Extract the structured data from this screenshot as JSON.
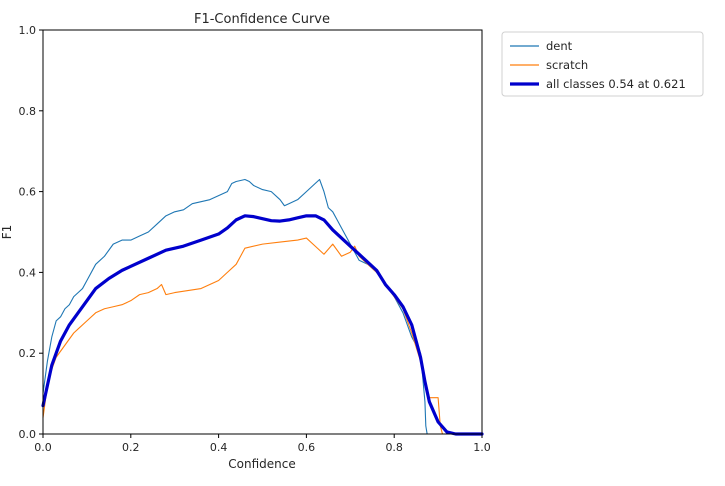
{
  "chart_data": {
    "type": "line",
    "title": "F1-Confidence Curve",
    "xlabel": "Confidence",
    "ylabel": "F1",
    "xlim": [
      0,
      1
    ],
    "ylim": [
      0,
      1
    ],
    "xticks": [
      0.0,
      0.2,
      0.4,
      0.6,
      0.8,
      1.0
    ],
    "yticks": [
      0.0,
      0.2,
      0.4,
      0.6,
      0.8,
      1.0
    ],
    "xtick_labels": [
      "0.0",
      "0.2",
      "0.4",
      "0.6",
      "0.8",
      "1.0"
    ],
    "ytick_labels": [
      "0.0",
      "0.2",
      "0.4",
      "0.6",
      "0.8",
      "1.0"
    ],
    "grid": false,
    "legend_position": "outside-top-right",
    "series": [
      {
        "name": "dent",
        "color": "#1f77b4",
        "width": "thin",
        "x": [
          0.0,
          0.01,
          0.02,
          0.03,
          0.04,
          0.05,
          0.06,
          0.07,
          0.08,
          0.09,
          0.1,
          0.12,
          0.14,
          0.16,
          0.18,
          0.2,
          0.22,
          0.24,
          0.26,
          0.28,
          0.3,
          0.32,
          0.34,
          0.36,
          0.38,
          0.4,
          0.42,
          0.43,
          0.44,
          0.46,
          0.47,
          0.48,
          0.5,
          0.52,
          0.54,
          0.55,
          0.56,
          0.58,
          0.6,
          0.62,
          0.63,
          0.64,
          0.65,
          0.66,
          0.67,
          0.68,
          0.7,
          0.72,
          0.74,
          0.76,
          0.78,
          0.8,
          0.82,
          0.84,
          0.86,
          0.87,
          0.872,
          0.875,
          0.9,
          1.0
        ],
        "y": [
          0.1,
          0.18,
          0.24,
          0.28,
          0.29,
          0.31,
          0.32,
          0.34,
          0.35,
          0.36,
          0.38,
          0.42,
          0.44,
          0.47,
          0.48,
          0.48,
          0.49,
          0.5,
          0.52,
          0.54,
          0.55,
          0.555,
          0.57,
          0.575,
          0.58,
          0.59,
          0.6,
          0.62,
          0.625,
          0.63,
          0.625,
          0.615,
          0.605,
          0.6,
          0.58,
          0.565,
          0.57,
          0.58,
          0.6,
          0.62,
          0.63,
          0.6,
          0.56,
          0.55,
          0.53,
          0.51,
          0.47,
          0.43,
          0.42,
          0.4,
          0.37,
          0.34,
          0.3,
          0.24,
          0.2,
          0.08,
          0.02,
          0.0,
          0.0,
          0.0
        ]
      },
      {
        "name": "scratch",
        "color": "#ff7f0e",
        "width": "thin",
        "x": [
          0.0,
          0.01,
          0.02,
          0.03,
          0.05,
          0.07,
          0.08,
          0.1,
          0.12,
          0.14,
          0.16,
          0.18,
          0.2,
          0.22,
          0.24,
          0.26,
          0.27,
          0.28,
          0.3,
          0.33,
          0.36,
          0.38,
          0.4,
          0.42,
          0.44,
          0.45,
          0.46,
          0.5,
          0.54,
          0.58,
          0.6,
          0.62,
          0.64,
          0.66,
          0.68,
          0.7,
          0.71,
          0.72,
          0.74,
          0.76,
          0.78,
          0.8,
          0.82,
          0.84,
          0.86,
          0.88,
          0.9,
          0.905,
          0.91,
          1.0
        ],
        "y": [
          0.04,
          0.12,
          0.16,
          0.19,
          0.22,
          0.25,
          0.26,
          0.28,
          0.3,
          0.31,
          0.315,
          0.32,
          0.33,
          0.345,
          0.35,
          0.36,
          0.37,
          0.345,
          0.35,
          0.355,
          0.36,
          0.37,
          0.38,
          0.4,
          0.42,
          0.44,
          0.46,
          0.47,
          0.475,
          0.48,
          0.485,
          0.465,
          0.445,
          0.47,
          0.44,
          0.45,
          0.465,
          0.44,
          0.42,
          0.4,
          0.37,
          0.34,
          0.31,
          0.25,
          0.18,
          0.09,
          0.09,
          0.02,
          0.0,
          0.0
        ]
      },
      {
        "name": "all classes 0.54 at 0.621",
        "color": "#0000cc",
        "width": "thick",
        "x": [
          0.0,
          0.01,
          0.02,
          0.03,
          0.04,
          0.06,
          0.08,
          0.1,
          0.12,
          0.15,
          0.18,
          0.2,
          0.24,
          0.28,
          0.32,
          0.36,
          0.4,
          0.42,
          0.44,
          0.46,
          0.48,
          0.5,
          0.52,
          0.54,
          0.56,
          0.58,
          0.6,
          0.621,
          0.64,
          0.66,
          0.68,
          0.7,
          0.72,
          0.74,
          0.76,
          0.78,
          0.8,
          0.82,
          0.84,
          0.86,
          0.87,
          0.88,
          0.9,
          0.92,
          0.94,
          1.0
        ],
        "y": [
          0.07,
          0.12,
          0.17,
          0.2,
          0.23,
          0.27,
          0.3,
          0.33,
          0.36,
          0.385,
          0.405,
          0.415,
          0.435,
          0.455,
          0.465,
          0.48,
          0.495,
          0.51,
          0.53,
          0.54,
          0.538,
          0.533,
          0.528,
          0.527,
          0.53,
          0.535,
          0.54,
          0.54,
          0.53,
          0.505,
          0.485,
          0.465,
          0.445,
          0.425,
          0.405,
          0.37,
          0.345,
          0.315,
          0.27,
          0.19,
          0.13,
          0.08,
          0.03,
          0.005,
          0.0,
          0.0
        ]
      }
    ]
  }
}
